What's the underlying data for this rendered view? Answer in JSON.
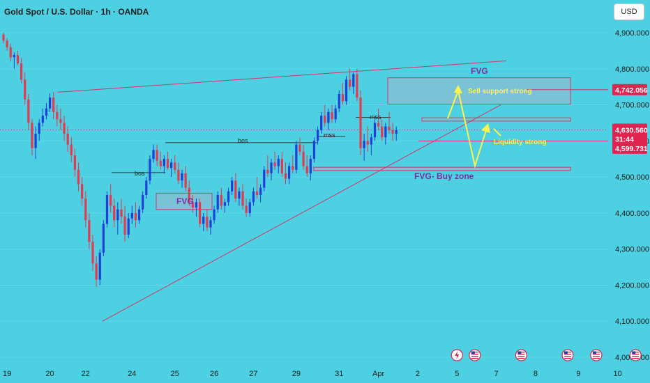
{
  "header": {
    "symbol_title": "Gold Spot / U.S. Dollar · 1h · OANDA",
    "currency_button": "USD"
  },
  "colors": {
    "background": "#4dd0e1",
    "bull": "#1e3fd8",
    "bear": "#e53950",
    "trendline": "#d6336c",
    "zone_fill": "#f2a0c0",
    "yellow": "#fff34d",
    "purple_text": "#7b2fa0",
    "badge_red": "#e0234f",
    "badge_dark": "#b0153a"
  },
  "chart_data": {
    "type": "candlestick",
    "ylim": [
      4000,
      4950
    ],
    "y_ticks": [
      "4,900.000",
      "4,800.000",
      "4,700.000",
      "4,600.000",
      "4,500.000",
      "4,400.000",
      "4,300.000",
      "4,200.000",
      "4,100.000",
      "4,000.000"
    ],
    "y_tick_values": [
      4900,
      4800,
      4700,
      4600,
      4500,
      4400,
      4300,
      4200,
      4100,
      4000
    ],
    "x_ticks": [
      "19",
      "20",
      "22",
      "24",
      "25",
      "26",
      "27",
      "29",
      "31",
      "Apr",
      "2",
      "5",
      "7",
      "8",
      "9",
      "10"
    ],
    "x_tick_index": [
      1,
      13,
      23,
      36,
      48,
      59,
      70,
      82,
      94,
      105,
      116,
      127,
      138,
      149,
      161,
      172
    ],
    "last_price": "4,630.560",
    "countdown": "31:44",
    "price_levels": [
      {
        "label": "4,742.056",
        "value": 4742
      },
      {
        "label": "4,599.731",
        "value": 4599.7
      }
    ],
    "candles": [
      [
        4895,
        4900,
        4870,
        4878
      ],
      [
        4878,
        4885,
        4850,
        4860
      ],
      [
        4860,
        4870,
        4820,
        4832
      ],
      [
        4832,
        4845,
        4800,
        4838
      ],
      [
        4838,
        4850,
        4810,
        4815
      ],
      [
        4815,
        4830,
        4760,
        4770
      ],
      [
        4770,
        4790,
        4700,
        4715
      ],
      [
        4715,
        4730,
        4630,
        4650
      ],
      [
        4650,
        4660,
        4560,
        4580
      ],
      [
        4580,
        4640,
        4550,
        4620
      ],
      [
        4620,
        4660,
        4600,
        4650
      ],
      [
        4650,
        4690,
        4640,
        4670
      ],
      [
        4670,
        4705,
        4660,
        4690
      ],
      [
        4690,
        4732,
        4680,
        4720
      ],
      [
        4720,
        4735,
        4660,
        4680
      ],
      [
        4680,
        4700,
        4640,
        4660
      ],
      [
        4660,
        4690,
        4630,
        4650
      ],
      [
        4650,
        4670,
        4600,
        4620
      ],
      [
        4620,
        4640,
        4570,
        4590
      ],
      [
        4590,
        4610,
        4540,
        4560
      ],
      [
        4560,
        4580,
        4500,
        4520
      ],
      [
        4520,
        4540,
        4460,
        4480
      ],
      [
        4480,
        4500,
        4420,
        4440
      ],
      [
        4440,
        4460,
        4360,
        4380
      ],
      [
        4380,
        4400,
        4300,
        4320
      ],
      [
        4320,
        4340,
        4240,
        4260
      ],
      [
        4260,
        4280,
        4195,
        4215
      ],
      [
        4215,
        4300,
        4200,
        4290
      ],
      [
        4290,
        4380,
        4280,
        4370
      ],
      [
        4370,
        4460,
        4360,
        4450
      ],
      [
        4450,
        4480,
        4400,
        4420
      ],
      [
        4420,
        4440,
        4360,
        4380
      ],
      [
        4380,
        4430,
        4340,
        4410
      ],
      [
        4410,
        4440,
        4370,
        4390
      ],
      [
        4390,
        4420,
        4320,
        4340
      ],
      [
        4340,
        4400,
        4330,
        4385
      ],
      [
        4385,
        4420,
        4370,
        4400
      ],
      [
        4400,
        4430,
        4360,
        4380
      ],
      [
        4380,
        4420,
        4370,
        4410
      ],
      [
        4410,
        4460,
        4400,
        4450
      ],
      [
        4450,
        4500,
        4440,
        4490
      ],
      [
        4490,
        4560,
        4480,
        4550
      ],
      [
        4550,
        4590,
        4540,
        4575
      ],
      [
        4575,
        4590,
        4530,
        4545
      ],
      [
        4545,
        4570,
        4520,
        4530
      ],
      [
        4530,
        4560,
        4510,
        4550
      ],
      [
        4550,
        4570,
        4520,
        4525
      ],
      [
        4525,
        4550,
        4500,
        4540
      ],
      [
        4540,
        4560,
        4510,
        4520
      ],
      [
        4520,
        4540,
        4480,
        4490
      ],
      [
        4490,
        4520,
        4470,
        4510
      ],
      [
        4510,
        4530,
        4460,
        4470
      ],
      [
        4470,
        4490,
        4420,
        4430
      ],
      [
        4430,
        4450,
        4400,
        4415
      ],
      [
        4415,
        4440,
        4390,
        4430
      ],
      [
        4430,
        4440,
        4360,
        4370
      ],
      [
        4370,
        4400,
        4350,
        4390
      ],
      [
        4390,
        4410,
        4350,
        4360
      ],
      [
        4360,
        4390,
        4340,
        4380
      ],
      [
        4380,
        4420,
        4370,
        4410
      ],
      [
        4410,
        4460,
        4400,
        4450
      ],
      [
        4450,
        4470,
        4410,
        4420
      ],
      [
        4420,
        4440,
        4400,
        4430
      ],
      [
        4430,
        4470,
        4420,
        4460
      ],
      [
        4460,
        4500,
        4450,
        4490
      ],
      [
        4490,
        4510,
        4430,
        4440
      ],
      [
        4440,
        4470,
        4420,
        4460
      ],
      [
        4460,
        4480,
        4410,
        4420
      ],
      [
        4420,
        4440,
        4390,
        4400
      ],
      [
        4400,
        4440,
        4390,
        4430
      ],
      [
        4430,
        4470,
        4420,
        4460
      ],
      [
        4460,
        4500,
        4440,
        4450
      ],
      [
        4450,
        4480,
        4430,
        4470
      ],
      [
        4470,
        4530,
        4460,
        4520
      ],
      [
        4520,
        4560,
        4500,
        4510
      ],
      [
        4510,
        4550,
        4490,
        4540
      ],
      [
        4540,
        4570,
        4520,
        4530
      ],
      [
        4530,
        4560,
        4510,
        4550
      ],
      [
        4550,
        4570,
        4500,
        4510
      ],
      [
        4510,
        4540,
        4480,
        4495
      ],
      [
        4495,
        4540,
        4480,
        4530
      ],
      [
        4530,
        4560,
        4510,
        4520
      ],
      [
        4520,
        4600,
        4510,
        4590
      ],
      [
        4590,
        4610,
        4560,
        4570
      ],
      [
        4570,
        4590,
        4520,
        4530
      ],
      [
        4530,
        4560,
        4500,
        4510
      ],
      [
        4510,
        4560,
        4490,
        4550
      ],
      [
        4550,
        4610,
        4540,
        4600
      ],
      [
        4600,
        4640,
        4590,
        4630
      ],
      [
        4630,
        4680,
        4620,
        4670
      ],
      [
        4670,
        4700,
        4640,
        4650
      ],
      [
        4650,
        4690,
        4630,
        4680
      ],
      [
        4680,
        4700,
        4650,
        4660
      ],
      [
        4660,
        4700,
        4650,
        4690
      ],
      [
        4690,
        4740,
        4680,
        4730
      ],
      [
        4730,
        4760,
        4700,
        4710
      ],
      [
        4710,
        4780,
        4700,
        4770
      ],
      [
        4770,
        4800,
        4740,
        4750
      ],
      [
        4750,
        4790,
        4730,
        4785
      ],
      [
        4785,
        4800,
        4710,
        4720
      ],
      [
        4720,
        4740,
        4560,
        4580
      ],
      [
        4580,
        4620,
        4545,
        4600
      ],
      [
        4600,
        4640,
        4570,
        4590
      ],
      [
        4590,
        4620,
        4560,
        4610
      ],
      [
        4610,
        4660,
        4600,
        4650
      ],
      [
        4650,
        4690,
        4630,
        4640
      ],
      [
        4640,
        4660,
        4600,
        4610
      ],
      [
        4610,
        4650,
        4590,
        4640
      ],
      [
        4640,
        4680,
        4620,
        4630
      ],
      [
        4630,
        4650,
        4600,
        4620
      ],
      [
        4620,
        4640,
        4600,
        4630
      ]
    ],
    "annotations": [
      {
        "text": "FVG",
        "kind": "zone-label"
      },
      {
        "text": "FVG",
        "kind": "zone-label"
      },
      {
        "text": "Sell support strong",
        "kind": "note"
      },
      {
        "text": "Liquidity strong",
        "kind": "note"
      },
      {
        "text": "FVG- Buy zone",
        "kind": "zone-label"
      },
      {
        "text": "bos",
        "kind": "structure"
      },
      {
        "text": "bos",
        "kind": "structure"
      },
      {
        "text": "mss",
        "kind": "structure"
      },
      {
        "text": "mss",
        "kind": "structure"
      }
    ],
    "events": [
      {
        "icon": "lightning-event-icon",
        "x_index": 127
      },
      {
        "icon": "us-flag-event-icon",
        "x_index": 132
      },
      {
        "icon": "us-flag-event-icon",
        "x_index": 145
      },
      {
        "icon": "us-flag-event-icon",
        "x_index": 158
      },
      {
        "icon": "us-flag-event-icon",
        "x_index": 166
      },
      {
        "icon": "us-flag-event-icon",
        "x_index": 177
      }
    ]
  }
}
